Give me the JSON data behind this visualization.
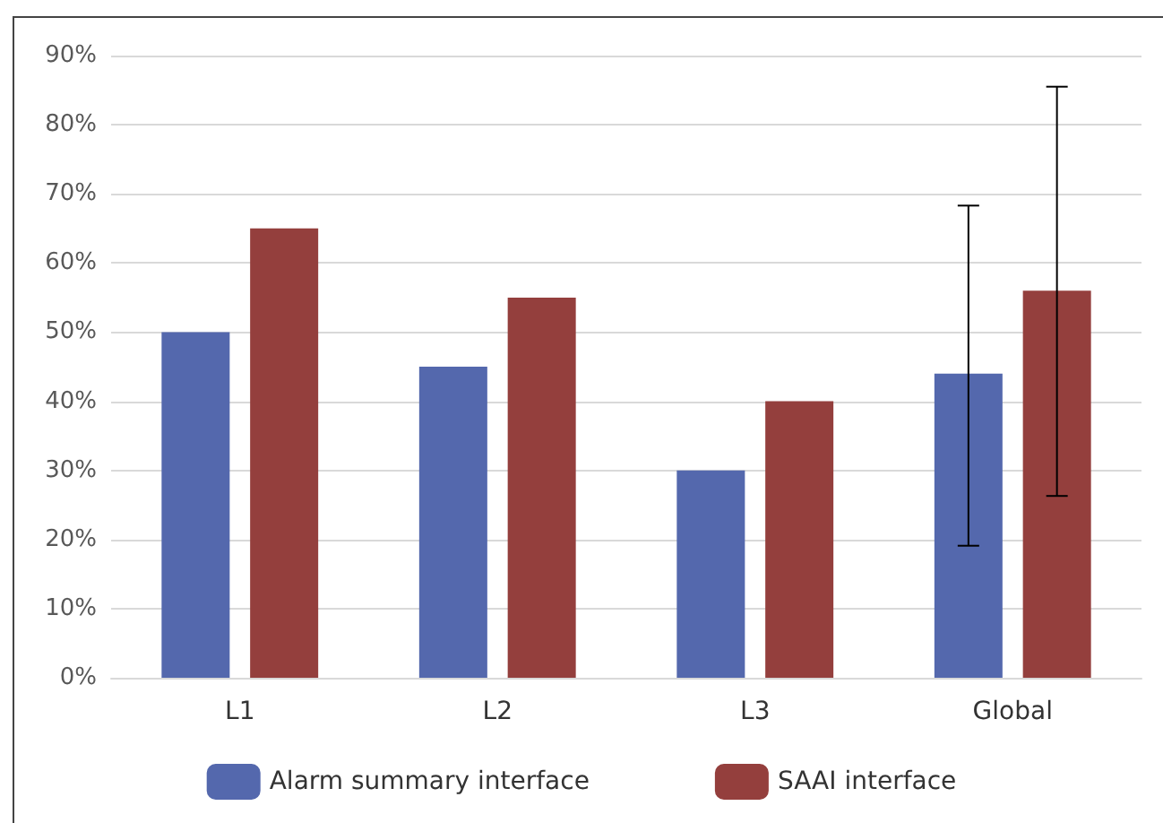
{
  "chart_data": {
    "type": "bar",
    "categories": [
      "L1",
      "L2",
      "L3",
      "Global"
    ],
    "series": [
      {
        "name": "Alarm summary interface",
        "color": "#5468ad",
        "values": [
          50,
          45,
          30,
          44
        ],
        "errors": [
          null,
          null,
          null,
          [
            19.1,
            68.3
          ]
        ]
      },
      {
        "name": "SAAI interface",
        "color": "#943f3d",
        "values": [
          65,
          55,
          40,
          56
        ],
        "errors": [
          null,
          null,
          null,
          [
            26.3,
            85.5
          ]
        ]
      }
    ],
    "ylim": [
      0,
      90
    ],
    "yticks": [
      {
        "value": 0,
        "label": "0%"
      },
      {
        "value": 10,
        "label": "10%"
      },
      {
        "value": 20,
        "label": "20%"
      },
      {
        "value": 30,
        "label": "30%"
      },
      {
        "value": 40,
        "label": "40%"
      },
      {
        "value": 50,
        "label": "50%"
      },
      {
        "value": 60,
        "label": "60%"
      },
      {
        "value": 70,
        "label": "70%"
      },
      {
        "value": 80,
        "label": "80%"
      },
      {
        "value": 90,
        "label": "90%"
      }
    ],
    "grid": "y",
    "legend": "bottom"
  }
}
